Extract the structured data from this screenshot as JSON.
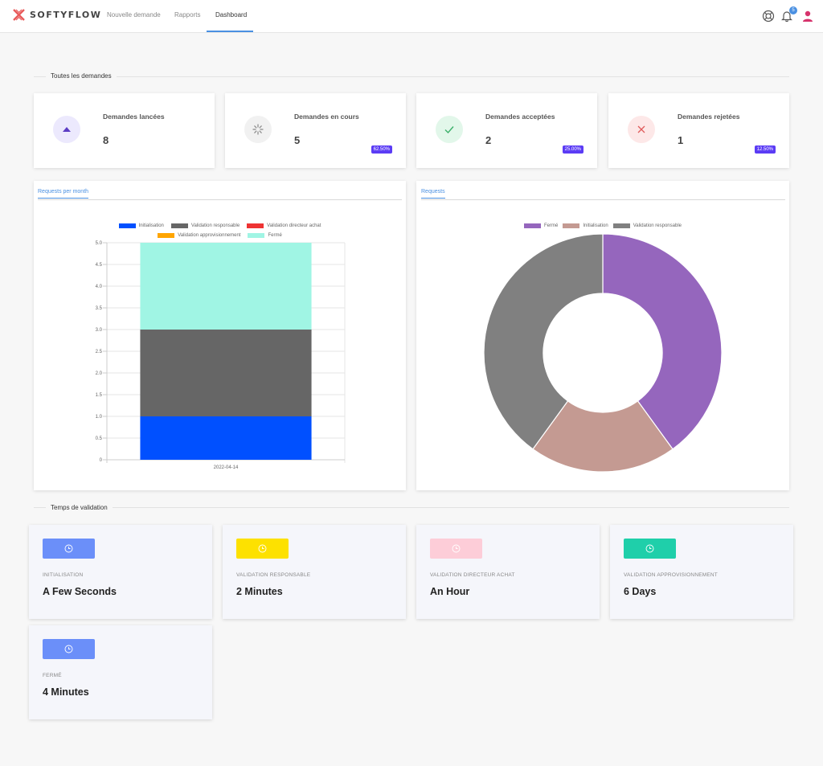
{
  "nav": {
    "brand": "SOFTYFLOW",
    "links": [
      "Nouvelle demande",
      "Rapports",
      "Dashboard"
    ],
    "notification_count": "5"
  },
  "sections": {
    "demandes": "Toutes les demandes",
    "temps": "Temps de validation"
  },
  "stats": [
    {
      "title": "Demandes lancées",
      "value": "8",
      "badge": "",
      "icon": "triangle-up-icon",
      "icon_bg": "#ece9fd",
      "icon_color": "#5b3cc4"
    },
    {
      "title": "Demandes en cours",
      "value": "5",
      "badge": "62.50%",
      "icon": "spinner-icon",
      "icon_bg": "#f1f1f1",
      "icon_color": "#888888"
    },
    {
      "title": "Demandes acceptées",
      "value": "2",
      "badge": "25.00%",
      "icon": "check-icon",
      "icon_bg": "#e2f7ea",
      "icon_color": "#3bb06a"
    },
    {
      "title": "Demandes rejetées",
      "value": "1",
      "badge": "12.50%",
      "icon": "x-icon",
      "icon_bg": "#fde8e8",
      "icon_color": "#e05c5c"
    }
  ],
  "bar_panel": {
    "tab": "Requests per month"
  },
  "pie_panel": {
    "tab": "Requests"
  },
  "chart_data": [
    {
      "type": "bar",
      "stacked": true,
      "categories": [
        "2022-04-14"
      ],
      "series": [
        {
          "name": "Initialisation",
          "values": [
            1
          ],
          "color": "#0050ff"
        },
        {
          "name": "Validation responsable",
          "values": [
            2
          ],
          "color": "#666666"
        },
        {
          "name": "Validation directeur achat",
          "values": [
            0
          ],
          "color": "#ee3333"
        },
        {
          "name": "Validation approvisionnement",
          "values": [
            0
          ],
          "color": "#ffa500"
        },
        {
          "name": "Fermé",
          "values": [
            2
          ],
          "color": "#a0f5e4"
        }
      ],
      "ylim": [
        0,
        5
      ],
      "yticks": [
        "0",
        "0.5",
        "1.0",
        "1.5",
        "2.0",
        "2.5",
        "3.0",
        "3.5",
        "4.0",
        "4.5",
        "5.0"
      ],
      "legend": "top",
      "grid": true
    },
    {
      "type": "pie",
      "donut": true,
      "labels": [
        "Fermé",
        "Initialisation",
        "Validation responsable"
      ],
      "values": [
        2,
        1,
        2
      ],
      "colors": [
        "#9566bd",
        "#c49a92",
        "#808080"
      ],
      "legend": "top"
    }
  ],
  "times": [
    {
      "label": "INITIALISATION",
      "value": "A Few Seconds",
      "color": "#6b8ff9"
    },
    {
      "label": "VALIDATION RESPONSABLE",
      "value": "2 Minutes",
      "color": "#fde100"
    },
    {
      "label": "VALIDATION DIRECTEUR ACHAT",
      "value": "An Hour",
      "color": "#fdcdd8"
    },
    {
      "label": "VALIDATION APPROVISIONNEMENT",
      "value": "6 Days",
      "color": "#1fcfaa"
    },
    {
      "label": "FERMÉ",
      "value": "4 Minutes",
      "color": "#6b8ff9"
    }
  ]
}
